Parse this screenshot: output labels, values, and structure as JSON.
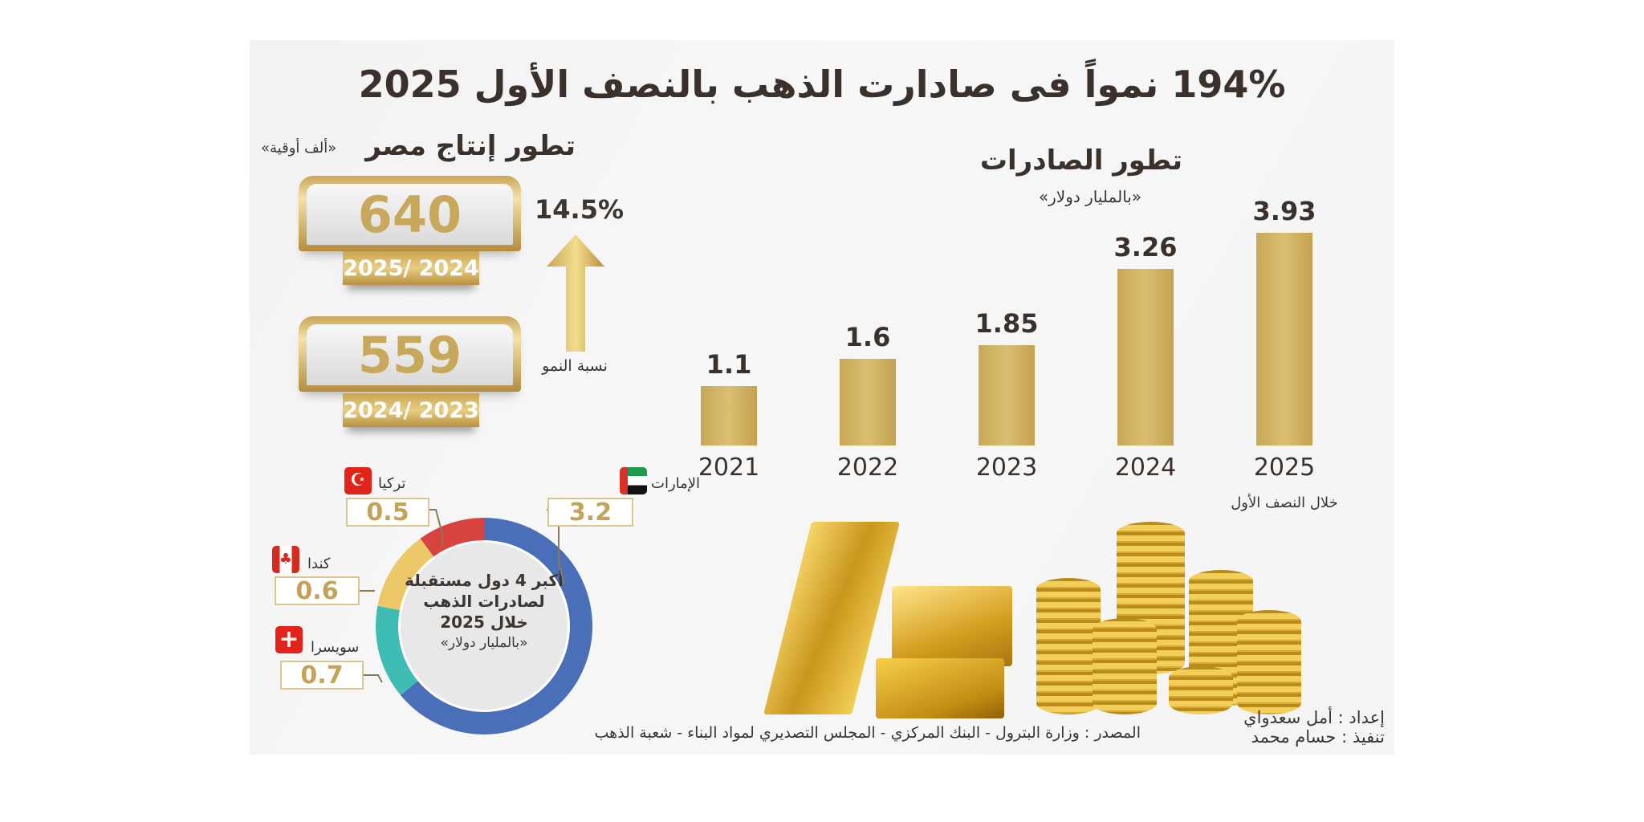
{
  "title": "194% نمواً فى صادارت الذهب بالنصف الأول 2025",
  "production": {
    "title": "تطور إنتاج مصر",
    "unit": "«ألف أوقية»",
    "items": [
      {
        "value": "640",
        "period": "2025/ 2024"
      },
      {
        "value": "559",
        "period": "2024/ 2023"
      }
    ],
    "growth_value": "14.5%",
    "growth_label": "نسبة النمو"
  },
  "exports": {
    "title": "تطور الصادرات",
    "unit": "«بالمليار دولار»",
    "year_note": "خلال النصف الأول"
  },
  "chart_data": [
    {
      "type": "bar",
      "title": "تطور الصادرات",
      "ylabel": "«بالمليار دولار»",
      "categories": [
        "2021",
        "2022",
        "2023",
        "2024",
        "2025"
      ],
      "values": [
        1.1,
        1.6,
        1.85,
        3.26,
        3.93
      ],
      "value_labels": [
        "1.1",
        "1.6",
        "1.85",
        "3.26",
        "3.93"
      ],
      "color": "#c8a857"
    },
    {
      "type": "pie",
      "donut": true,
      "title": "أكبر 4 دول مستقبلة لصادرات الذهب خلال 2025",
      "unit": "«بالمليار دولار»",
      "slices": [
        {
          "label": "الإمارات",
          "value": 3.2,
          "display": "3.2",
          "color": "#4a6fb8",
          "flag": "uae-flag"
        },
        {
          "label": "سويسرا",
          "value": 0.7,
          "display": "0.7",
          "color": "#3fbcb3",
          "flag": "switzerland-flag"
        },
        {
          "label": "كندا",
          "value": 0.6,
          "display": "0.6",
          "color": "#ecc869",
          "flag": "canada-flag"
        },
        {
          "label": "تركيا",
          "value": 0.5,
          "display": "0.5",
          "color": "#d9433f",
          "flag": "turkey-flag"
        }
      ]
    }
  ],
  "donut_center": {
    "line1": "أكبر 4 دول مستقبلة",
    "line2": "لصادرات الذهب",
    "line3": "خلال 2025",
    "unit": "«بالمليار دولار»"
  },
  "footer": {
    "source": "المصدر : وزارة البترول - البنك المركزي - المجلس التصديري لمواد البناء - شعبة الذهب",
    "prepared": "إعداد : أمل سعدواي",
    "design": "تنفيذ : حسام محمد"
  }
}
